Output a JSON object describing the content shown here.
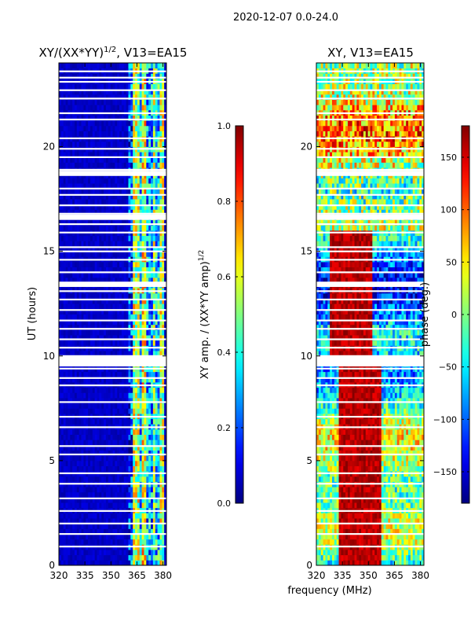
{
  "suptitle": "2020-12-07 0.0-24.0",
  "shared_xlabel": "frequency (MHz)",
  "chart_data": [
    {
      "type": "heatmap",
      "title_base": "XY/(XX*YY)",
      "title_sup": "1/2",
      "title_suffix": ", V13=EA15",
      "ylabel": "UT (hours)",
      "xlim": [
        320,
        382
      ],
      "ylim": [
        0,
        24
      ],
      "xticks": [
        320,
        335,
        350,
        365,
        380
      ],
      "yticks": [
        0,
        5,
        10,
        15,
        20
      ],
      "colorbar": {
        "label_base": "XY amp. / (XX*YY amp)",
        "label_sup": "1/2",
        "range": [
          0.0,
          1.0
        ],
        "ticks": [
          "0.0",
          "0.2",
          "0.4",
          "0.6",
          "0.8",
          "1.0"
        ],
        "tick_values": [
          0.0,
          0.2,
          0.4,
          0.6,
          0.8,
          1.0
        ]
      }
    },
    {
      "type": "heatmap",
      "title_base": "XY, V13=EA15",
      "ylabel": "",
      "xlim": [
        320,
        382
      ],
      "ylim": [
        0,
        24
      ],
      "xticks": [
        320,
        335,
        350,
        365,
        380
      ],
      "yticks": [
        0,
        5,
        10,
        15,
        20
      ],
      "colorbar": {
        "label_base": "phase (deg.)",
        "range": [
          -180,
          180
        ],
        "ticks": [
          "−150",
          "−100",
          "−50",
          "0",
          "50",
          "100",
          "150"
        ],
        "tick_values": [
          -150,
          -100,
          -50,
          0,
          50,
          100,
          150
        ]
      }
    }
  ],
  "gap_hours": [
    0.9,
    1.5,
    2.0,
    2.6,
    3.2,
    3.9,
    4.4,
    5.3,
    5.7,
    6.6,
    7.1,
    7.8,
    8.6,
    8.95,
    9.4,
    9.55,
    9.7,
    9.85,
    10.0,
    10.4,
    10.8,
    11.3,
    11.7,
    12.2,
    12.7,
    13.1,
    13.35,
    14.0,
    14.6,
    15.0,
    15.2,
    15.9,
    16.3,
    16.6,
    16.8,
    17.2,
    17.7,
    18.0,
    18.7,
    18.9,
    19.5,
    19.9,
    20.4,
    21.3,
    21.6,
    22.3,
    22.7,
    23.1,
    23.3,
    23.6
  ],
  "amp_profile": [
    {
      "f": [
        320,
        360
      ],
      "amp": 0.05
    },
    {
      "f": [
        360,
        363
      ],
      "amp": 0.15
    },
    {
      "f": [
        363,
        366
      ],
      "amp": 0.5
    },
    {
      "f": [
        366,
        368
      ],
      "amp": 0.3
    },
    {
      "f": [
        368,
        371
      ],
      "amp": 0.55
    },
    {
      "f": [
        371,
        374
      ],
      "amp": 0.25
    },
    {
      "f": [
        374,
        376
      ],
      "amp": 0.45
    },
    {
      "f": [
        376,
        378
      ],
      "amp": 0.3
    },
    {
      "f": [
        378,
        381
      ],
      "amp": 0.5
    },
    {
      "f": [
        381,
        382
      ],
      "amp": 0.1
    }
  ]
}
